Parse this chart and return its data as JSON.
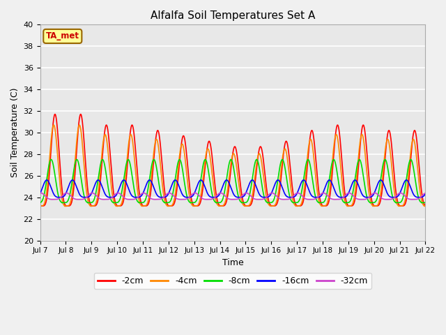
{
  "title": "Alfalfa Soil Temperatures Set A",
  "xlabel": "Time",
  "ylabel": "Soil Temperature (C)",
  "ylim": [
    20,
    40
  ],
  "x_tick_labels": [
    "Jul 7",
    "Jul 8",
    "Jul 9",
    "Jul 10",
    "Jul 11",
    "Jul 12",
    "Jul 13",
    "Jul 14",
    "Jul 15",
    "Jul 16",
    "Jul 17",
    "Jul 18",
    "Jul 19",
    "Jul 20",
    "Jul 21",
    "Jul 22"
  ],
  "annotation_text": "TA_met",
  "annotation_color": "#cc0000",
  "annotation_bg": "#ffff99",
  "annotation_border": "#996600",
  "series_colors": [
    "#ff0000",
    "#ff8800",
    "#00dd00",
    "#0000ff",
    "#cc44cc"
  ],
  "series_labels": [
    "-2cm",
    "-4cm",
    "-8cm",
    "-16cm",
    "-32cm"
  ],
  "plot_bg_color": "#e8e8e8",
  "fig_bg_color": "#f0f0f0",
  "grid_color": "#ffffff",
  "n_points": 4320,
  "mean_temps": [
    23.2,
    23.2,
    23.5,
    24.0,
    23.8
  ],
  "amplitudes": [
    8.5,
    7.5,
    4.0,
    1.6,
    0.6
  ],
  "phase_shifts_days": [
    0.0,
    0.05,
    0.15,
    0.32,
    0.55
  ],
  "peak_time": 0.58,
  "waveform_power": 4,
  "day_amplitudes_2cm": [
    8.5,
    8.5,
    7.5,
    7.5,
    7.0,
    6.5,
    6.0,
    5.5,
    5.5,
    6.0,
    7.0,
    7.5,
    7.5,
    7.0,
    7.0
  ],
  "linewidth": 1.2
}
